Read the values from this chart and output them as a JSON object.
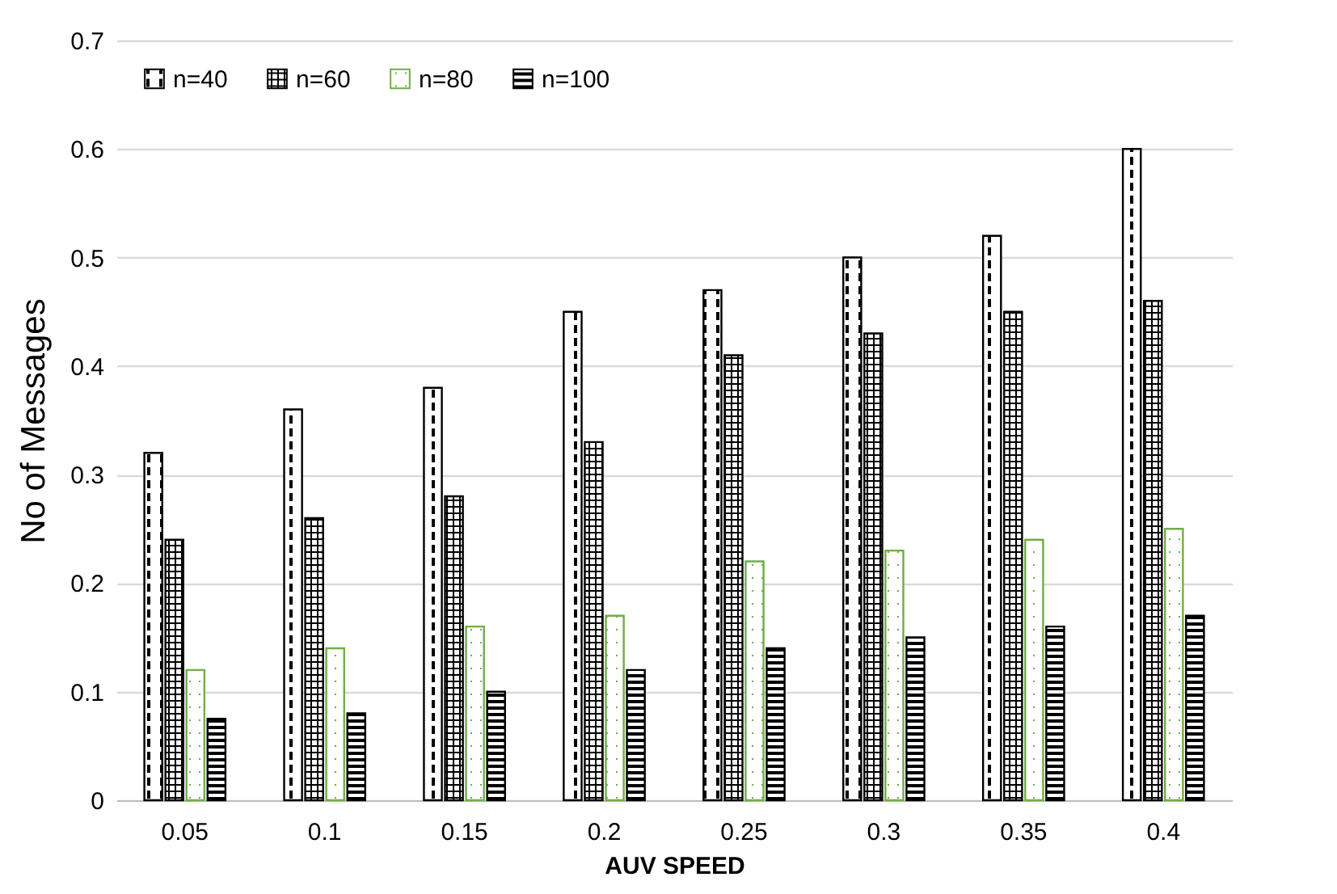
{
  "chart_data": {
    "type": "bar",
    "xlabel": "AUV SPEED",
    "ylabel": "No of Messages",
    "categories": [
      "0.05",
      "0.1",
      "0.15",
      "0.2",
      "0.25",
      "0.3",
      "0.35",
      "0.4"
    ],
    "series": [
      {
        "name": "n=40",
        "color": "#000000",
        "values": [
          0.32,
          0.36,
          0.38,
          0.45,
          0.47,
          0.5,
          0.52,
          0.6
        ]
      },
      {
        "name": "n=60",
        "color": "#000000",
        "values": [
          0.24,
          0.26,
          0.28,
          0.33,
          0.41,
          0.43,
          0.45,
          0.46
        ]
      },
      {
        "name": "n=80",
        "color": "#70ad47",
        "values": [
          0.12,
          0.14,
          0.16,
          0.17,
          0.22,
          0.23,
          0.24,
          0.25
        ]
      },
      {
        "name": "n=100",
        "color": "#000000",
        "values": [
          0.075,
          0.08,
          0.1,
          0.12,
          0.14,
          0.15,
          0.16,
          0.17
        ]
      }
    ],
    "ylim": [
      0,
      0.7
    ],
    "yticks": [
      0,
      0.1,
      0.2,
      0.3,
      0.4,
      0.5,
      0.6,
      0.7
    ],
    "grid": "y",
    "legend": "top left"
  }
}
